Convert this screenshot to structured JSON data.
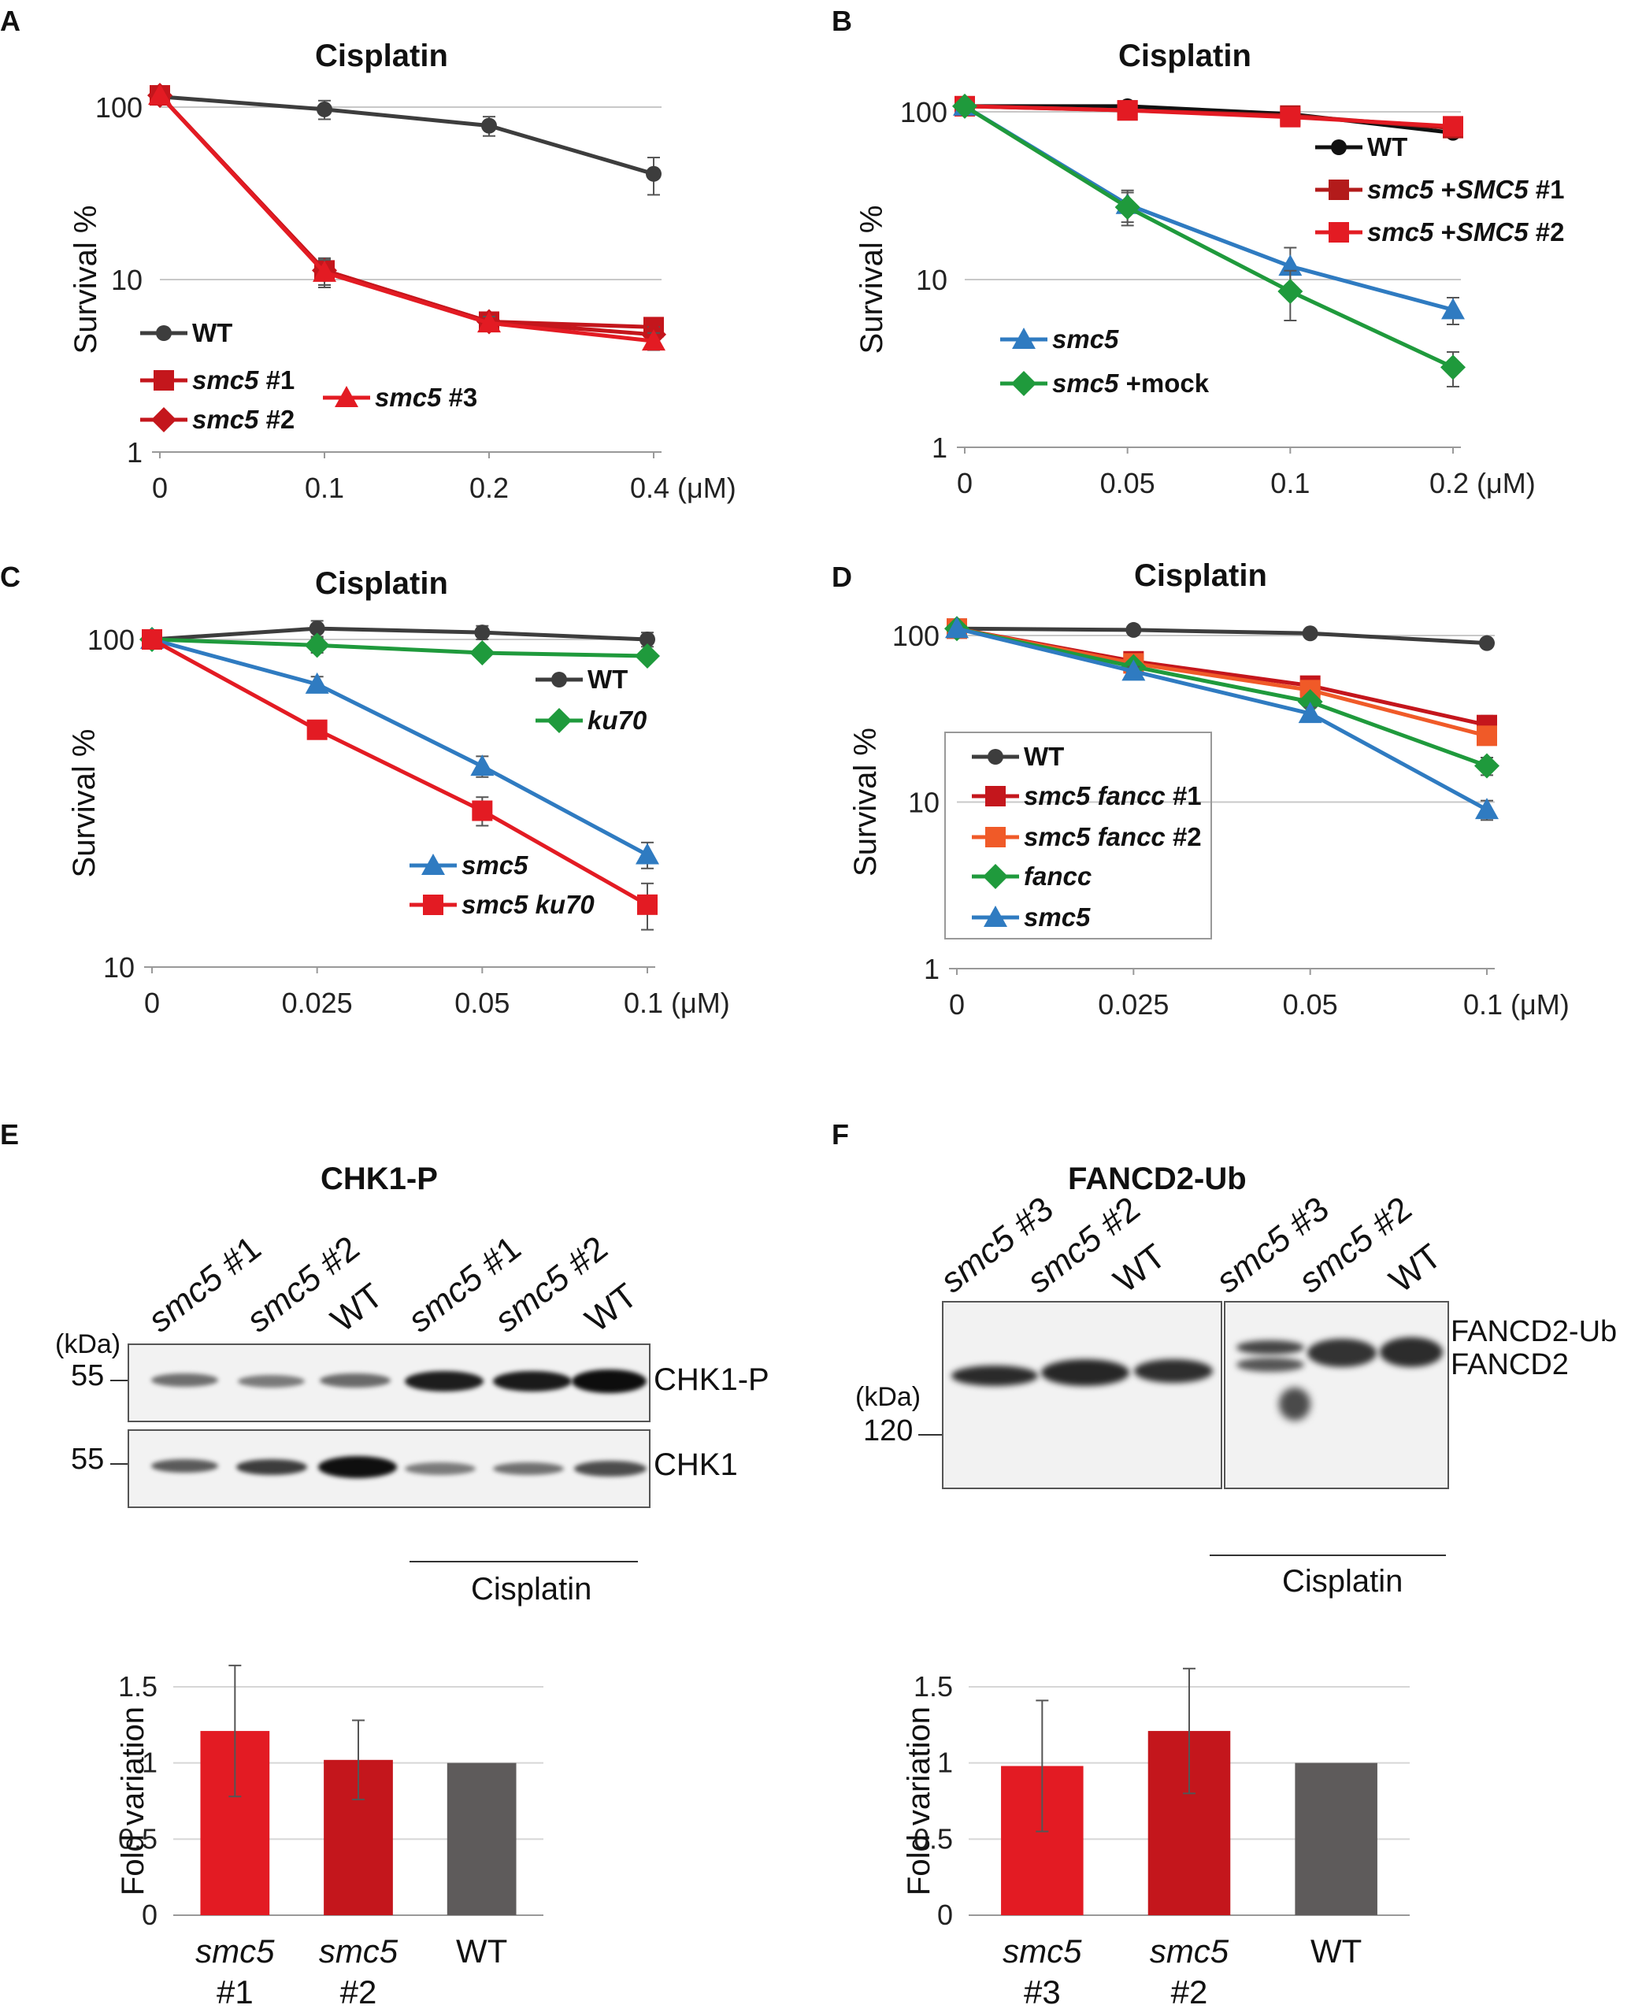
{
  "panels": {
    "A": "A",
    "B": "B",
    "C": "C",
    "D": "D",
    "E": "E",
    "F": "F"
  },
  "chart_data": [
    {
      "id": "A",
      "type": "line",
      "title": "Cisplatin",
      "ylabel": "Survival %",
      "xlabel": "(µM)",
      "yscale": "log",
      "ylim": [
        1,
        100
      ],
      "yticks": [
        "1",
        "10",
        "100"
      ],
      "yticks_values": [
        1,
        10,
        100
      ],
      "categories": [
        "0",
        "0.1",
        "0.2",
        "0.4 (μM)"
      ],
      "series": [
        {
          "name": "WT",
          "color": "#3d3d3d",
          "marker": "circle",
          "values": [
            115,
            97,
            78,
            41
          ],
          "errors": [
            6,
            12,
            10,
            10
          ]
        },
        {
          "name": "smc5 #1",
          "color": "#c4161c",
          "marker": "square",
          "values": [
            117,
            11.3,
            5.7,
            5.3
          ],
          "errors": [
            0,
            2,
            0.5,
            0.5
          ]
        },
        {
          "name": "smc5 #2",
          "color": "#c4161c",
          "marker": "diamond",
          "values": [
            117,
            11.3,
            5.7,
            4.8
          ],
          "errors": [
            0,
            2,
            0.5,
            0.5
          ]
        },
        {
          "name": "smc5 #3",
          "color": "#e31b23",
          "marker": "triangle",
          "values": [
            117,
            11.0,
            5.6,
            4.4
          ],
          "errors": [
            0,
            2,
            0.5,
            0.5
          ]
        }
      ],
      "legend": [
        {
          "italic": "",
          "bold": "WT"
        },
        {
          "italic": "smc5",
          "bold": " #1"
        },
        {
          "italic": "smc5",
          "bold": " #2"
        },
        {
          "italic": "smc5",
          "bold": " #3"
        }
      ]
    },
    {
      "id": "B",
      "type": "line",
      "title": "Cisplatin",
      "ylabel": "Survival %",
      "xlabel": "(µM)",
      "yscale": "log",
      "ylim": [
        1,
        100
      ],
      "yticks": [
        "1",
        "10",
        "100"
      ],
      "yticks_values": [
        1,
        10,
        100
      ],
      "categories": [
        "0",
        "0.05",
        "0.1",
        "0.2 (μM)"
      ],
      "series": [
        {
          "name": "WT",
          "color": "#111111",
          "marker": "circle",
          "values": [
            108,
            108,
            97,
            75
          ],
          "errors": [
            0,
            3,
            3,
            3
          ]
        },
        {
          "name": "smc5 +SMC5 #1",
          "color": "#b31b1b",
          "marker": "square",
          "values": [
            108,
            102,
            95,
            80
          ],
          "errors": [
            0,
            3,
            3,
            3
          ]
        },
        {
          "name": "smc5 +SMC5 #2",
          "color": "#e31b23",
          "marker": "square",
          "values": [
            108,
            102,
            93,
            82
          ],
          "errors": [
            0,
            3,
            3,
            3
          ]
        },
        {
          "name": "smc5",
          "color": "#2f7bc1",
          "marker": "triangle",
          "values": [
            108,
            28,
            12,
            6.6
          ],
          "errors": [
            0,
            6,
            3.5,
            1.2
          ]
        },
        {
          "name": "smc5 +mock",
          "color": "#1f9a3c",
          "marker": "diamond",
          "values": [
            108,
            27,
            8.5,
            3.0
          ],
          "errors": [
            0,
            6,
            2.8,
            0.7
          ]
        }
      ],
      "legend": [
        {
          "italic": "",
          "bold": "WT",
          "group": "top"
        },
        {
          "italic": "smc5",
          "bold": " +",
          "italic2": "SMC5",
          "bold2": " #1",
          "group": "top"
        },
        {
          "italic": "smc5",
          "bold": " +",
          "italic2": "SMC5",
          "bold2": " #2",
          "group": "top"
        },
        {
          "italic": "smc5",
          "bold": "",
          "group": "bottom"
        },
        {
          "italic": "smc5",
          "bold": " +mock",
          "group": "bottom"
        }
      ]
    },
    {
      "id": "C",
      "type": "line",
      "title": "Cisplatin",
      "ylabel": "Survival %",
      "xlabel": "(µM)",
      "yscale": "log",
      "ylim": [
        10,
        100
      ],
      "yticks": [
        "10",
        "100"
      ],
      "yticks_values": [
        10,
        100
      ],
      "categories": [
        "0",
        "0.025",
        "0.05",
        "0.1 (μM)"
      ],
      "series": [
        {
          "name": "WT",
          "color": "#3d3d3d",
          "marker": "circle",
          "values": [
            100,
            108,
            105,
            100
          ],
          "errors": [
            0,
            6,
            5,
            5
          ]
        },
        {
          "name": "ku70",
          "color": "#1f9a3c",
          "marker": "diamond",
          "values": [
            100,
            96,
            91,
            89
          ],
          "errors": [
            0,
            5,
            3,
            3
          ]
        },
        {
          "name": "smc5",
          "color": "#2f7bc1",
          "marker": "triangle",
          "values": [
            100,
            73,
            41,
            22
          ],
          "errors": [
            0,
            4,
            3,
            2
          ]
        },
        {
          "name": "smc5 ku70",
          "color": "#e31b23",
          "marker": "square",
          "values": [
            100,
            53,
            30,
            15.5
          ],
          "errors": [
            0,
            3,
            3,
            2.5
          ]
        }
      ],
      "legend": [
        {
          "italic": "",
          "bold": "WT",
          "group": "top"
        },
        {
          "italic": "ku70",
          "bold": "",
          "group": "top"
        },
        {
          "italic": "smc5",
          "bold": "",
          "group": "bottom"
        },
        {
          "italic": "smc5 ku70",
          "bold": "",
          "group": "bottom"
        }
      ]
    },
    {
      "id": "D",
      "type": "line",
      "title": "Cisplatin",
      "ylabel": "Survival %",
      "xlabel": "(µM)",
      "yscale": "log",
      "ylim": [
        1,
        100
      ],
      "yticks": [
        "1",
        "10",
        "100"
      ],
      "yticks_values": [
        1,
        10,
        100
      ],
      "categories": [
        "0",
        "0.025",
        "0.05",
        "0.1 (μM)"
      ],
      "series": [
        {
          "name": "WT",
          "color": "#3d3d3d",
          "marker": "circle",
          "values": [
            110,
            108,
            103,
            90
          ],
          "errors": [
            0,
            3,
            3,
            3
          ]
        },
        {
          "name": "smc5 fancc #1",
          "color": "#c4161c",
          "marker": "square",
          "values": [
            110,
            70,
            50,
            29
          ],
          "errors": [
            0,
            8,
            4,
            4
          ]
        },
        {
          "name": "smc5 fancc #2",
          "color": "#f05a28",
          "marker": "square",
          "values": [
            110,
            68,
            47,
            25
          ],
          "errors": [
            0,
            5,
            4,
            3
          ]
        },
        {
          "name": "fancc",
          "color": "#1f9a3c",
          "marker": "diamond",
          "values": [
            110,
            65,
            40,
            16.5
          ],
          "errors": [
            0,
            5,
            3,
            2
          ]
        },
        {
          "name": "smc5",
          "color": "#2f7bc1",
          "marker": "triangle",
          "values": [
            110,
            61,
            34,
            9
          ],
          "errors": [
            0,
            4,
            3,
            1.2
          ]
        }
      ],
      "legend": [
        {
          "italic": "",
          "bold": "WT"
        },
        {
          "italic": "smc5 fancc",
          "bold": " #1"
        },
        {
          "italic": "smc5 fancc",
          "bold": " #2"
        },
        {
          "italic": "fancc",
          "bold": ""
        },
        {
          "italic": "smc5",
          "bold": ""
        }
      ]
    },
    {
      "id": "E-bar",
      "type": "bar",
      "ylabel": "Fold variation",
      "ylim": [
        0,
        1.5
      ],
      "yticks": [
        "0",
        "0.5",
        "1",
        "1.5"
      ],
      "yticks_values": [
        0,
        0.5,
        1,
        1.5
      ],
      "categories": [
        {
          "line1": "smc5",
          "line2": "#1",
          "italic": true
        },
        {
          "line1": "smc5",
          "line2": "#2",
          "italic": true
        },
        {
          "line1": "WT",
          "line2": "",
          "italic": false
        }
      ],
      "values": [
        1.21,
        1.02,
        1.0
      ],
      "errors": [
        0.43,
        0.26,
        0.0
      ],
      "colors": [
        "#e31b23",
        "#c4161c",
        "#5e5b5b"
      ]
    },
    {
      "id": "F-bar",
      "type": "bar",
      "ylabel": "Fold variation",
      "ylim": [
        0,
        1.5
      ],
      "yticks": [
        "0",
        "0.5",
        "1",
        "1.5"
      ],
      "yticks_values": [
        0,
        0.5,
        1,
        1.5
      ],
      "categories": [
        {
          "line1": "smc5",
          "line2": "#3",
          "italic": true
        },
        {
          "line1": "smc5",
          "line2": "#2",
          "italic": true
        },
        {
          "line1": "WT",
          "line2": "",
          "italic": false
        }
      ],
      "values": [
        0.98,
        1.21,
        1.0
      ],
      "errors": [
        0.43,
        0.41,
        0.0
      ],
      "colors": [
        "#e31b23",
        "#c4161c",
        "#5e5b5b"
      ]
    }
  ],
  "blots": {
    "E": {
      "title": "CHK1-P",
      "lanes": [
        {
          "italic": "smc5",
          "rest": " #1"
        },
        {
          "italic": "smc5",
          "rest": " #2"
        },
        {
          "italic": "",
          "rest": "WT"
        },
        {
          "italic": "smc5",
          "rest": " #1"
        },
        {
          "italic": "smc5",
          "rest": " #2"
        },
        {
          "italic": "",
          "rest": "WT"
        }
      ],
      "kda": "(kDa)",
      "marker1": "55",
      "marker2": "55",
      "row1_label": "CHK1-P",
      "row2_label": "CHK1",
      "treatment": "Cisplatin"
    },
    "F": {
      "title": "FANCD2-Ub",
      "lanes": [
        {
          "italic": "smc5",
          "rest": " #3"
        },
        {
          "italic": "smc5",
          "rest": " #2"
        },
        {
          "italic": "",
          "rest": "WT"
        },
        {
          "italic": "smc5",
          "rest": " #3"
        },
        {
          "italic": "smc5",
          "rest": " #2"
        },
        {
          "italic": "",
          "rest": "WT"
        }
      ],
      "kda": "(kDa)",
      "marker": "120",
      "band_label_top": "FANCD2-Ub",
      "band_label_bottom": "FANCD2",
      "treatment": "Cisplatin"
    }
  }
}
